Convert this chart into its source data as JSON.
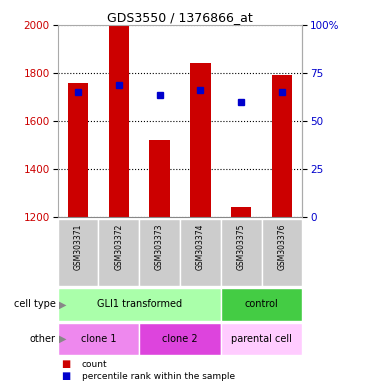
{
  "title": "GDS3550 / 1376866_at",
  "samples": [
    "GSM303371",
    "GSM303372",
    "GSM303373",
    "GSM303374",
    "GSM303375",
    "GSM303376"
  ],
  "bar_values": [
    1760,
    2000,
    1520,
    1840,
    1240,
    1790
  ],
  "dot_values": [
    1720,
    1750,
    1710,
    1730,
    1680,
    1720
  ],
  "ylim": [
    1200,
    2000
  ],
  "y_ticks_left": [
    1200,
    1400,
    1600,
    1800,
    2000
  ],
  "y_ticks_right_labels": [
    "0",
    "25",
    "50",
    "75",
    "100%"
  ],
  "y_ticks_right_pct": [
    0,
    25,
    50,
    75,
    100
  ],
  "bar_color": "#cc0000",
  "dot_color": "#0000cc",
  "tick_label_color_left": "#cc0000",
  "tick_label_color_right": "#0000cc",
  "bg_color": "#ffffff",
  "sample_bg_color": "#cccccc",
  "cell_type_groups": [
    {
      "label": "GLI1 transformed",
      "span": [
        0,
        4
      ],
      "color": "#aaffaa"
    },
    {
      "label": "control",
      "span": [
        4,
        6
      ],
      "color": "#44cc44"
    }
  ],
  "other_groups": [
    {
      "label": "clone 1",
      "span": [
        0,
        2
      ],
      "color": "#ee88ee"
    },
    {
      "label": "clone 2",
      "span": [
        2,
        4
      ],
      "color": "#dd44dd"
    },
    {
      "label": "parental cell",
      "span": [
        4,
        6
      ],
      "color": "#ffccff"
    }
  ],
  "cell_type_label": "cell type",
  "other_label": "other",
  "legend_count_label": "count",
  "legend_percentile_label": "percentile rank within the sample"
}
